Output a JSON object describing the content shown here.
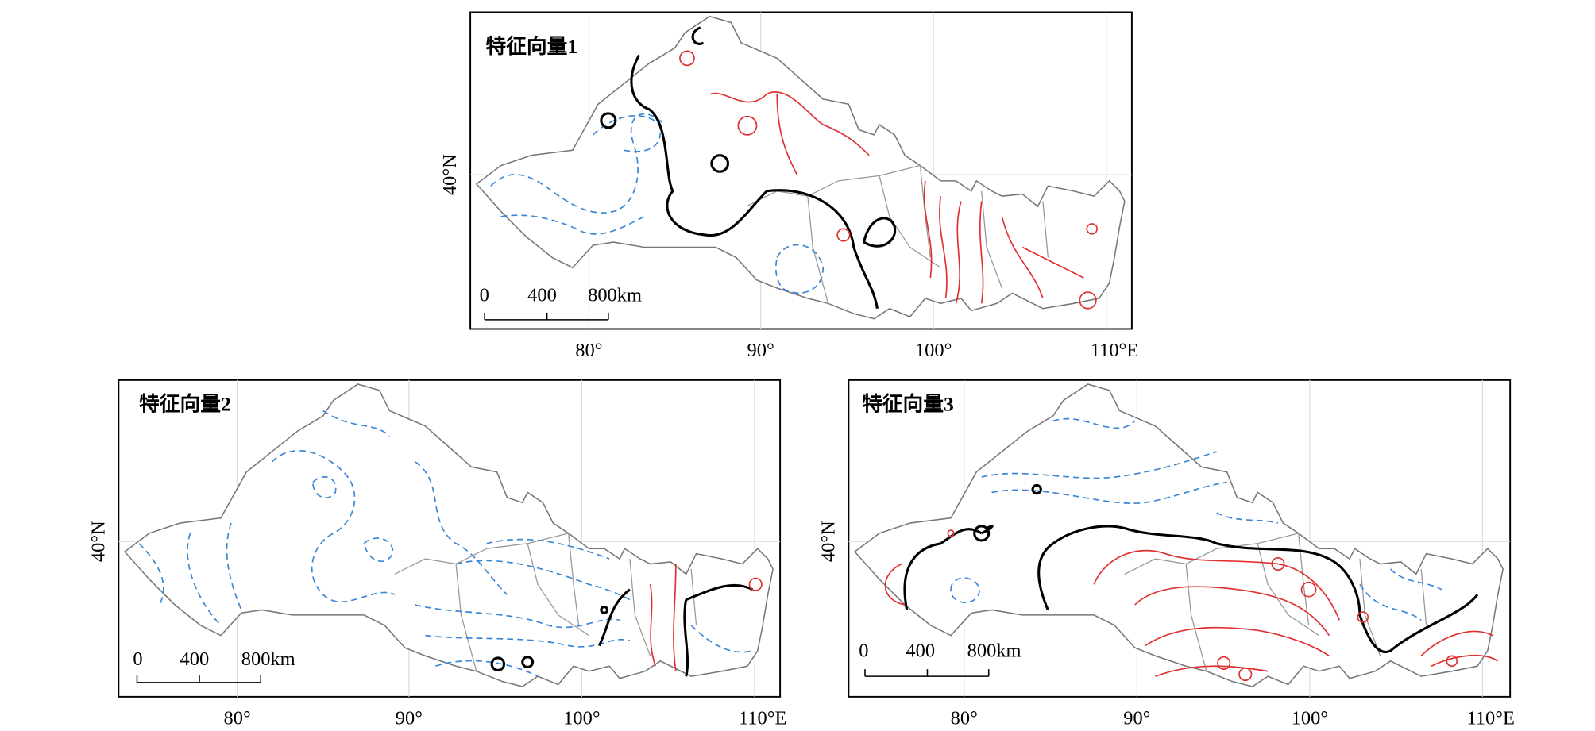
{
  "panels": [
    {
      "title": "特征向量1",
      "lat_label": "40°N",
      "lon_labels": [
        "80°",
        "90°",
        "100°",
        "110°E"
      ],
      "scale_labels": [
        "0",
        "400",
        "800km"
      ]
    },
    {
      "title": "特征向量2",
      "lat_label": "40°N",
      "lon_labels": [
        "80°",
        "90°",
        "100°",
        "110°E"
      ],
      "scale_labels": [
        "0",
        "400",
        "800km"
      ]
    },
    {
      "title": "特征向量3",
      "lat_label": "40°N",
      "lon_labels": [
        "80°",
        "90°",
        "100°",
        "110°E"
      ],
      "scale_labels": [
        "0",
        "400",
        "800km"
      ]
    }
  ]
}
